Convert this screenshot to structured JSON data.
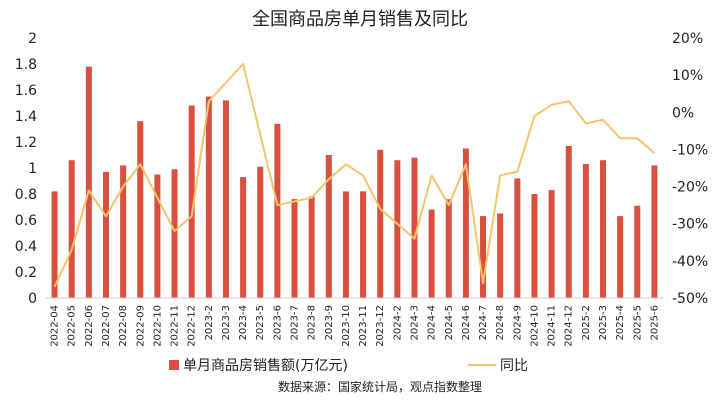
{
  "chart_data": {
    "type": "bar",
    "title": "全国商品房单月销售及同比",
    "source": "数据来源：国家统计局，观点指数整理",
    "categories": [
      "2022-04",
      "2022-05",
      "2022-06",
      "2022-07",
      "2022-08",
      "2022-09",
      "2022-10",
      "2022-11",
      "2022-12",
      "2023-2",
      "2023-3",
      "2023-4",
      "2023-5",
      "2023-6",
      "2023-7",
      "2023-8",
      "2023-9",
      "2023-10",
      "2023-11",
      "2023-12",
      "2024-2",
      "2024-3",
      "2024-4",
      "2024-5",
      "2024-6",
      "2024-7",
      "2024-8",
      "2024-9",
      "2024-10",
      "2024-11",
      "2024-12",
      "2025-2",
      "2025-3",
      "2025-4",
      "2025-5",
      "2025-6"
    ],
    "y_left": {
      "min": 0,
      "max": 2,
      "ticks": [
        "0",
        "0.2",
        "0.4",
        "0.6",
        "0.8",
        "1",
        "1.2",
        "1.4",
        "1.6",
        "1.8",
        "2"
      ]
    },
    "y_right": {
      "min": -50,
      "max": 20,
      "ticks": [
        "-50%",
        "-40%",
        "-30%",
        "-20%",
        "-10%",
        "0%",
        "10%",
        "20%"
      ]
    },
    "series": [
      {
        "name": "单月商品房销售额(万亿元)",
        "type": "bar",
        "axis": "left",
        "color": "#d9503f",
        "values": [
          0.82,
          1.06,
          1.78,
          0.97,
          1.02,
          1.36,
          0.95,
          0.99,
          1.48,
          1.55,
          1.52,
          0.93,
          1.01,
          1.34,
          0.76,
          0.78,
          1.1,
          0.82,
          0.82,
          1.14,
          1.06,
          1.08,
          0.68,
          0.76,
          1.15,
          0.63,
          0.65,
          0.92,
          0.8,
          0.83,
          1.17,
          1.03,
          1.06,
          0.63,
          0.71,
          1.02
        ]
      },
      {
        "name": "同比",
        "type": "line",
        "axis": "right",
        "color": "#f5c46b",
        "values": [
          -47,
          -37,
          -21,
          -28,
          -20,
          -14,
          -23,
          -32,
          -28,
          3,
          8,
          13,
          -6,
          -25,
          -24,
          -23,
          -18,
          -14,
          -17,
          -26,
          -30,
          -34,
          -17,
          -25,
          -14,
          -46,
          -17,
          -16,
          -1,
          2,
          3,
          -3,
          -2,
          -7,
          -7,
          -11
        ]
      }
    ],
    "legend_position": "bottom",
    "grid": false
  }
}
